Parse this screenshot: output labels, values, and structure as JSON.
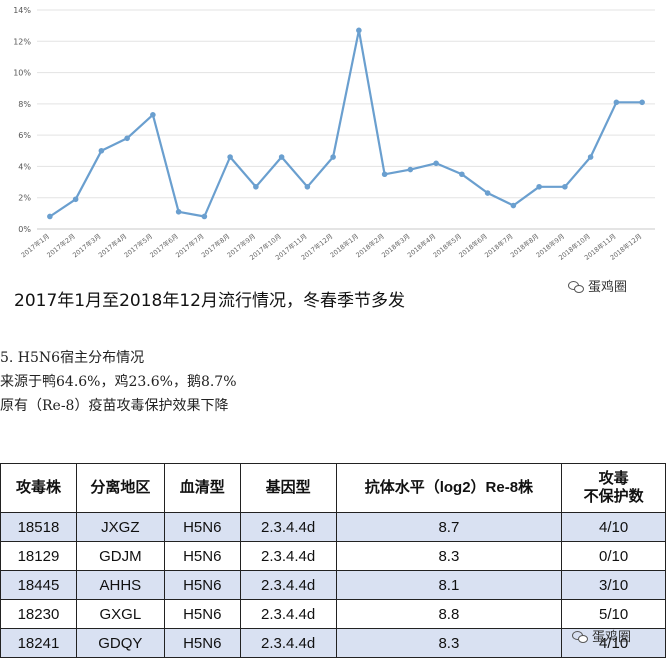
{
  "chart_data": {
    "type": "line",
    "categories": [
      "2017年1月",
      "2017年2月",
      "2017年3月",
      "2017年4月",
      "2017年5月",
      "2017年6月",
      "2017年7月",
      "2017年8月",
      "2017年9月",
      "2017年10月",
      "2017年11月",
      "2017年12月",
      "2018年1月",
      "2018年2月",
      "2018年3月",
      "2018年4月",
      "2018年5月",
      "2018年6月",
      "2018年7月",
      "2018年8月",
      "2018年9月",
      "2018年10月",
      "2018年11月",
      "2018年12月"
    ],
    "values": [
      0.8,
      1.9,
      5.0,
      5.8,
      7.3,
      1.1,
      0.8,
      4.6,
      2.7,
      4.6,
      2.7,
      4.6,
      12.7,
      3.5,
      3.8,
      4.2,
      3.5,
      2.3,
      1.5,
      2.7,
      2.7,
      4.6,
      8.1,
      8.1
    ],
    "ylim": [
      0,
      14
    ],
    "yticks": [
      "0%",
      "2%",
      "4%",
      "6%",
      "8%",
      "10%",
      "12%",
      "14%"
    ],
    "grid": true,
    "line_color": "#6a9fcf",
    "caption": "2017年1月至2018年12月流行情况，冬春季节多发"
  },
  "watermark": "蛋鸡圈",
  "notes": [
    "5.   H5N6宿主分布情况",
    "来源于鸭64.6%，鸡23.6%，鹅8.7%",
    "原有（Re-8）疫苗攻毒保护效果下降"
  ],
  "table": {
    "headers": [
      "攻毒株",
      "分离地区",
      "血清型",
      "基因型",
      "抗体水平（log2）Re-8株",
      "攻毒\n不保护数"
    ],
    "rows": [
      [
        "18518",
        "JXGZ",
        "H5N6",
        "2.3.4.4d",
        "8.7",
        "4/10"
      ],
      [
        "18129",
        "GDJM",
        "H5N6",
        "2.3.4.4d",
        "8.3",
        "0/10"
      ],
      [
        "18445",
        "AHHS",
        "H5N6",
        "2.3.4.4d",
        "8.1",
        "3/10"
      ],
      [
        "18230",
        "GXGL",
        "H5N6",
        "2.3.4.4d",
        "8.8",
        "5/10"
      ],
      [
        "18241",
        "GDQY",
        "H5N6",
        "2.3.4.4d",
        "8.3",
        "4/10"
      ]
    ]
  }
}
